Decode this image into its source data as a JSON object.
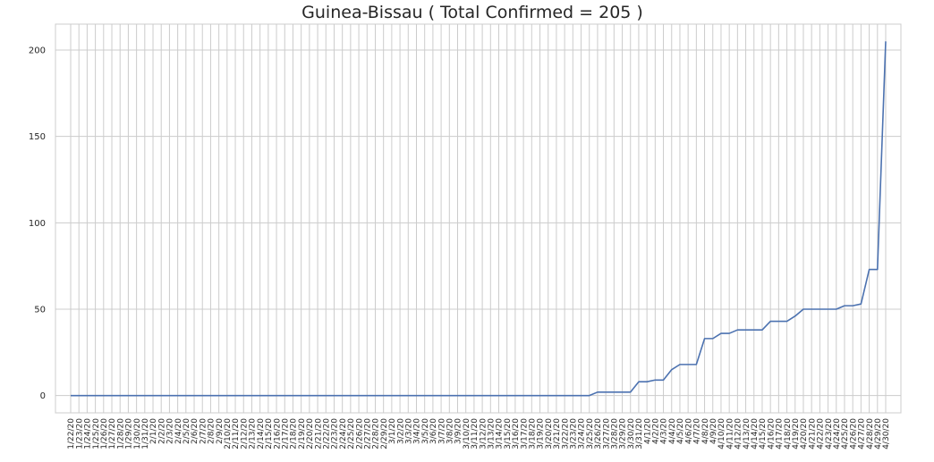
{
  "chart_data": {
    "type": "line",
    "title": "Guinea-Bissau ( Total Confirmed = 205 )",
    "xlabel": "",
    "ylabel": "",
    "grid": true,
    "ylim": [
      -10,
      215
    ],
    "yticks": [
      0,
      50,
      100,
      150,
      200
    ],
    "categories": [
      "1/22/20",
      "1/23/20",
      "1/24/20",
      "1/25/20",
      "1/26/20",
      "1/27/20",
      "1/28/20",
      "1/29/20",
      "1/30/20",
      "1/31/20",
      "2/1/20",
      "2/2/20",
      "2/3/20",
      "2/4/20",
      "2/5/20",
      "2/6/20",
      "2/7/20",
      "2/8/20",
      "2/9/20",
      "2/10/20",
      "2/11/20",
      "2/12/20",
      "2/13/20",
      "2/14/20",
      "2/15/20",
      "2/16/20",
      "2/17/20",
      "2/18/20",
      "2/19/20",
      "2/20/20",
      "2/21/20",
      "2/22/20",
      "2/23/20",
      "2/24/20",
      "2/25/20",
      "2/26/20",
      "2/27/20",
      "2/28/20",
      "2/29/20",
      "3/1/20",
      "3/2/20",
      "3/3/20",
      "3/4/20",
      "3/5/20",
      "3/6/20",
      "3/7/20",
      "3/8/20",
      "3/9/20",
      "3/10/20",
      "3/11/20",
      "3/12/20",
      "3/13/20",
      "3/14/20",
      "3/15/20",
      "3/16/20",
      "3/17/20",
      "3/18/20",
      "3/19/20",
      "3/20/20",
      "3/21/20",
      "3/22/20",
      "3/23/20",
      "3/24/20",
      "3/25/20",
      "3/26/20",
      "3/27/20",
      "3/28/20",
      "3/29/20",
      "3/30/20",
      "3/31/20",
      "4/1/20",
      "4/2/20",
      "4/3/20",
      "4/4/20",
      "4/5/20",
      "4/6/20",
      "4/7/20",
      "4/8/20",
      "4/9/20",
      "4/10/20",
      "4/11/20",
      "4/12/20",
      "4/13/20",
      "4/14/20",
      "4/15/20",
      "4/16/20",
      "4/17/20",
      "4/18/20",
      "4/19/20",
      "4/20/20",
      "4/21/20",
      "4/22/20",
      "4/23/20",
      "4/24/20",
      "4/25/20",
      "4/26/20",
      "4/27/20",
      "4/28/20",
      "4/29/20",
      "4/30/20"
    ],
    "series": [
      {
        "color": "#4c72b0",
        "values": [
          0,
          0,
          0,
          0,
          0,
          0,
          0,
          0,
          0,
          0,
          0,
          0,
          0,
          0,
          0,
          0,
          0,
          0,
          0,
          0,
          0,
          0,
          0,
          0,
          0,
          0,
          0,
          0,
          0,
          0,
          0,
          0,
          0,
          0,
          0,
          0,
          0,
          0,
          0,
          0,
          0,
          0,
          0,
          0,
          0,
          0,
          0,
          0,
          0,
          0,
          0,
          0,
          0,
          0,
          0,
          0,
          0,
          0,
          0,
          0,
          0,
          0,
          0,
          0,
          2,
          2,
          2,
          2,
          2,
          8,
          8,
          9,
          9,
          15,
          18,
          18,
          18,
          33,
          33,
          36,
          36,
          38,
          38,
          38,
          38,
          43,
          43,
          43,
          46,
          50,
          50,
          50,
          50,
          50,
          52,
          52,
          53,
          73,
          73,
          205
        ]
      }
    ]
  }
}
